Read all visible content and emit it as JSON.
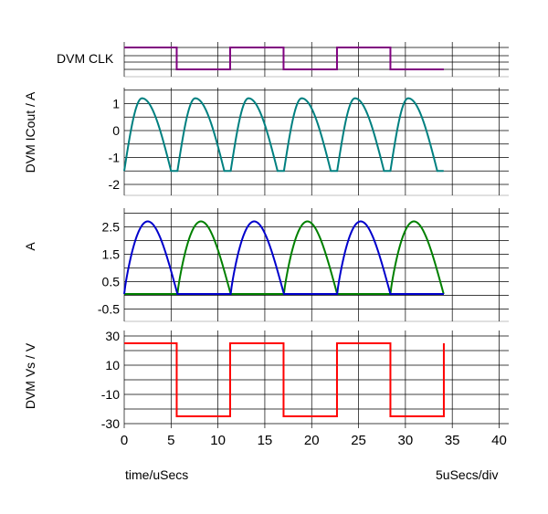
{
  "x_axis": {
    "label": "time/uSecs",
    "scale_label": "5uSecs/div",
    "ticks": [
      0,
      5,
      10,
      15,
      20,
      25,
      30,
      35,
      40
    ],
    "tick_labels": [
      "0",
      "5",
      "10",
      "15",
      "20",
      "25",
      "30",
      "35",
      "40"
    ],
    "range": [
      0,
      40
    ]
  },
  "colors": {
    "clk": "#800080",
    "icout": "#008080",
    "a_blue": "#0000cc",
    "a_green": "#008000",
    "vs": "#ff0000",
    "grid": "#000000",
    "separator": "#c0c0c0"
  },
  "chart_data": [
    {
      "type": "line",
      "panel": "clk",
      "ylabel": "DVM CLK",
      "series": [
        {
          "points": [
            [
              0,
              1
            ],
            [
              5.6,
              1
            ],
            [
              5.6,
              0
            ],
            [
              11.3,
              0
            ],
            [
              11.3,
              1
            ],
            [
              17.0,
              1
            ],
            [
              17.0,
              0
            ],
            [
              22.7,
              0
            ],
            [
              22.7,
              1
            ],
            [
              28.4,
              1
            ],
            [
              28.4,
              0
            ],
            [
              34.1,
              0
            ]
          ]
        }
      ],
      "ylim": [
        0,
        1
      ]
    },
    {
      "type": "line",
      "panel": "icout",
      "ylabel": "DVM ICout / A",
      "ytick_labels": [
        "1",
        "0",
        "-1",
        "-2"
      ],
      "yticks": [
        1,
        0,
        -1,
        -2
      ],
      "ylim": [
        -2.15,
        1.6
      ],
      "period_us": 5.68,
      "cycles": 6,
      "series": [
        {
          "shape": "rectified-sine-ramp",
          "min": -1.5,
          "max": 1.2
        }
      ]
    },
    {
      "type": "line",
      "panel": "a",
      "ylabel": "A",
      "ytick_labels": [
        "2.5",
        "1.5",
        "0.5",
        "-0.5"
      ],
      "yticks": [
        2.5,
        1.5,
        0.5,
        -0.5
      ],
      "ylim": [
        -0.7,
        3.0
      ],
      "series": [
        {
          "shape": "half-sine-pulses",
          "peak": 2.7,
          "starts_us": [
            0,
            11.36,
            22.72
          ]
        },
        {
          "shape": "half-sine-pulses",
          "peak": 2.7,
          "starts_us": [
            5.68,
            17.04,
            28.4
          ]
        }
      ]
    },
    {
      "type": "line",
      "panel": "vs",
      "ylabel": "DVM Vs / V",
      "ytick_labels": [
        "30",
        "10",
        "-10",
        "-30"
      ],
      "yticks": [
        30,
        10,
        -10,
        -30
      ],
      "ylim": [
        -33,
        35
      ],
      "series": [
        {
          "points": [
            [
              0,
              25
            ],
            [
              5.6,
              25
            ],
            [
              5.6,
              -25
            ],
            [
              11.3,
              -25
            ],
            [
              11.3,
              25
            ],
            [
              17.0,
              25
            ],
            [
              17.0,
              -25
            ],
            [
              22.7,
              -25
            ],
            [
              22.7,
              25
            ],
            [
              28.4,
              25
            ],
            [
              28.4,
              -25
            ],
            [
              34.1,
              -25
            ],
            [
              34.1,
              25
            ]
          ]
        }
      ]
    }
  ]
}
